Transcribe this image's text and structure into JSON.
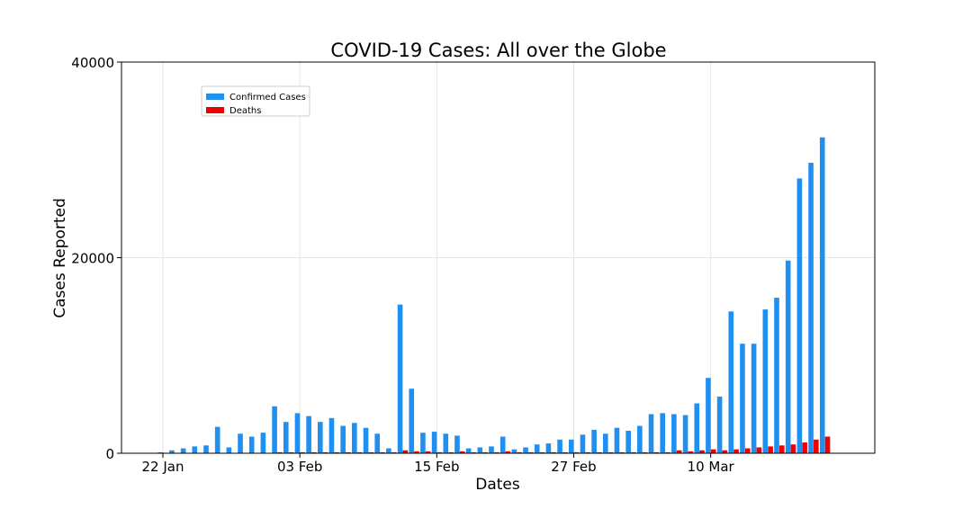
{
  "chart_data": {
    "type": "bar",
    "title": "COVID-19 Cases: All over the Globe",
    "xlabel": "Dates",
    "ylabel": "Cases Reported",
    "ylim": [
      0,
      40000
    ],
    "yticks": [
      "0",
      "20000",
      "40000"
    ],
    "xticks": [
      {
        "label": "22 Jan",
        "index": 1
      },
      {
        "label": "03 Feb",
        "index": 13
      },
      {
        "label": "15 Feb",
        "index": 25
      },
      {
        "label": "27 Feb",
        "index": 37
      },
      {
        "label": "10 Mar",
        "index": 49
      }
    ],
    "grid": true,
    "legend": "upper-left",
    "series": [
      {
        "name": "Confirmed Cases",
        "color": "#1f8ff0",
        "values": [
          0,
          100,
          300,
          500,
          700,
          800,
          2700,
          600,
          2000,
          1700,
          2100,
          4800,
          3200,
          4100,
          3800,
          3200,
          3600,
          2800,
          3100,
          2600,
          2000,
          500,
          15200,
          6600,
          2100,
          2200,
          2000,
          1800,
          500,
          600,
          700,
          1700,
          400,
          600,
          900,
          1000,
          1400,
          1400,
          1900,
          2400,
          2000,
          2600,
          2300,
          2800,
          4000,
          4100,
          4000,
          3900,
          5100,
          7700,
          5800,
          14500,
          11200,
          11200,
          14700,
          15900,
          19700,
          28100,
          29700,
          32300
        ]
      },
      {
        "name": "Deaths",
        "color": "#ee0000",
        "values": [
          0,
          0,
          0,
          0,
          0,
          0,
          0,
          0,
          0,
          0,
          0,
          100,
          100,
          100,
          100,
          100,
          100,
          100,
          100,
          100,
          100,
          100,
          300,
          200,
          200,
          100,
          100,
          200,
          100,
          100,
          100,
          200,
          100,
          100,
          100,
          100,
          100,
          100,
          100,
          100,
          100,
          100,
          100,
          100,
          100,
          100,
          300,
          200,
          300,
          400,
          300,
          400,
          500,
          600,
          700,
          800,
          900,
          1100,
          1400,
          1700
        ]
      }
    ]
  }
}
